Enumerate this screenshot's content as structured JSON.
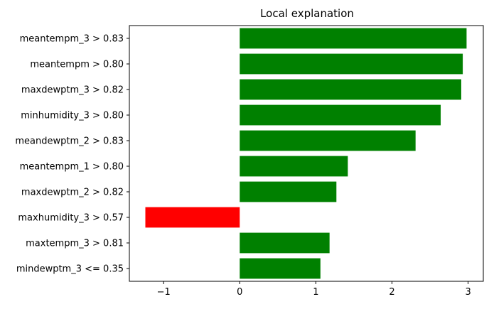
{
  "chart_data": {
    "type": "bar",
    "orientation": "horizontal",
    "title": "Local explanation",
    "xlabel": "",
    "ylabel": "",
    "xlim": [
      -1.45,
      3.2
    ],
    "x_ticks": [
      -1,
      0,
      1,
      2,
      3
    ],
    "x_tick_labels": [
      "−1",
      "0",
      "1",
      "2",
      "3"
    ],
    "categories": [
      "meantempm_3 > 0.83",
      "meantempm > 0.80",
      "maxdewptm_3 > 0.82",
      "minhumidity_3 > 0.80",
      "meandewptm_2 > 0.83",
      "meantempm_1 > 0.80",
      "maxdewptm_2 > 0.82",
      "maxhumidity_3 > 0.57",
      "maxtempm_3 > 0.81",
      "mindewptm_3 <= 0.35"
    ],
    "values": [
      2.98,
      2.93,
      2.91,
      2.64,
      2.31,
      1.42,
      1.27,
      -1.24,
      1.18,
      1.06
    ],
    "colors": {
      "positive": "#008000",
      "negative": "#ff0000"
    },
    "grid": false,
    "legend": "none"
  }
}
